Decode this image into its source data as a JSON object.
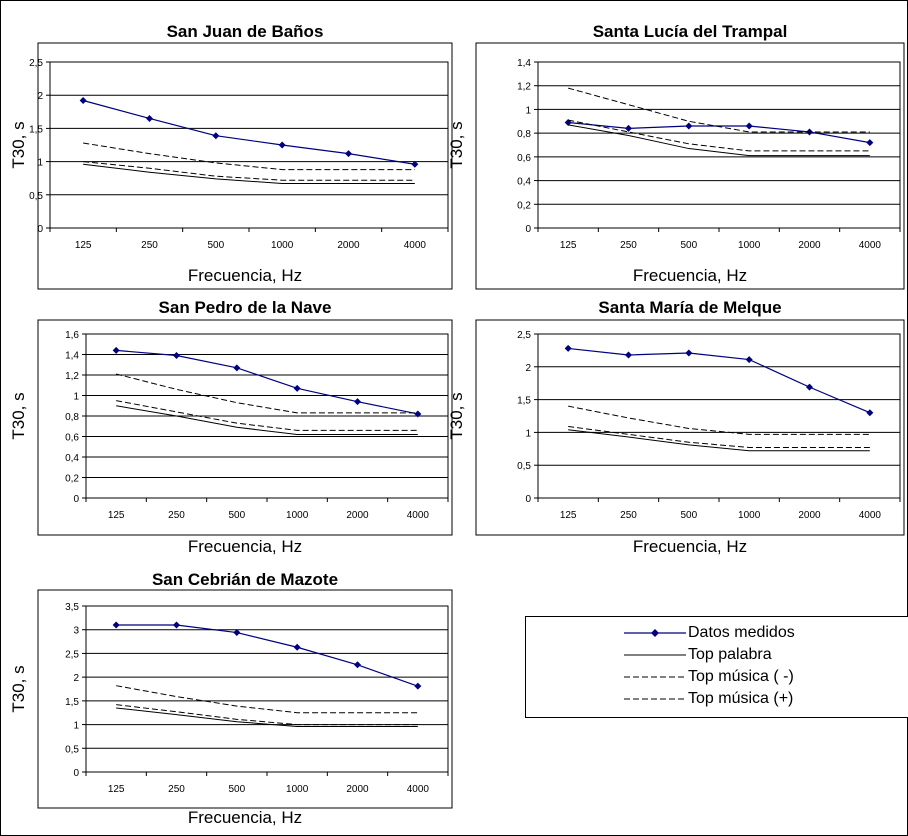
{
  "chart_data": [
    {
      "type": "line",
      "title": "San Juan de Baños",
      "xlabel": "Frecuencia, Hz",
      "ylabel": "T30, s",
      "categories": [
        "125",
        "250",
        "500",
        "1000",
        "2000",
        "4000"
      ],
      "yticks": [
        "0",
        "0,5",
        "1",
        "1,5",
        "2",
        "2,5"
      ],
      "ylim": [
        0,
        2.5
      ],
      "series": [
        {
          "name": "Datos medidos",
          "values": [
            1.92,
            1.65,
            1.39,
            1.25,
            1.12,
            0.96
          ]
        },
        {
          "name": "Top palabra",
          "values": [
            0.96,
            0.84,
            0.74,
            0.67,
            0.67,
            0.67
          ]
        },
        {
          "name": "Top música ( -)",
          "values": [
            1.0,
            0.9,
            0.78,
            0.72,
            0.72,
            0.72
          ]
        },
        {
          "name": "Top música (+)",
          "values": [
            1.28,
            1.12,
            0.98,
            0.88,
            0.88,
            0.88
          ]
        }
      ]
    },
    {
      "type": "line",
      "title": "Santa Lucía del Trampal",
      "xlabel": "Frecuencia, Hz",
      "ylabel": "T30, s",
      "categories": [
        "125",
        "250",
        "500",
        "1000",
        "2000",
        "4000"
      ],
      "yticks": [
        "0",
        "0,2",
        "0,4",
        "0,6",
        "0,8",
        "1",
        "1,2",
        "1,4"
      ],
      "ylim": [
        0,
        1.4
      ],
      "series": [
        {
          "name": "Datos medidos",
          "values": [
            0.89,
            0.84,
            0.86,
            0.86,
            0.81,
            0.72
          ]
        },
        {
          "name": "Top palabra",
          "values": [
            0.87,
            0.78,
            0.67,
            0.61,
            0.61,
            0.61
          ]
        },
        {
          "name": "Top música ( -)",
          "values": [
            0.91,
            0.81,
            0.71,
            0.65,
            0.65,
            0.65
          ]
        },
        {
          "name": "Top música (+)",
          "values": [
            1.18,
            1.04,
            0.9,
            0.81,
            0.81,
            0.81
          ]
        }
      ]
    },
    {
      "type": "line",
      "title": "San Pedro de la Nave",
      "xlabel": "Frecuencia, Hz",
      "ylabel": "T30, s",
      "categories": [
        "125",
        "250",
        "500",
        "1000",
        "2000",
        "4000"
      ],
      "yticks": [
        "0",
        "0,2",
        "0,4",
        "0,6",
        "0,8",
        "1",
        "1,2",
        "1,4",
        "1,6"
      ],
      "ylim": [
        0,
        1.6
      ],
      "series": [
        {
          "name": "Datos medidos",
          "values": [
            1.44,
            1.39,
            1.27,
            1.07,
            0.94,
            0.82
          ]
        },
        {
          "name": "Top palabra",
          "values": [
            0.9,
            0.8,
            0.69,
            0.62,
            0.62,
            0.62
          ]
        },
        {
          "name": "Top música ( -)",
          "values": [
            0.95,
            0.84,
            0.73,
            0.66,
            0.66,
            0.66
          ]
        },
        {
          "name": "Top música (+)",
          "values": [
            1.21,
            1.06,
            0.93,
            0.83,
            0.83,
            0.83
          ]
        }
      ]
    },
    {
      "type": "line",
      "title": "Santa María de Melque",
      "xlabel": "Frecuencia, Hz",
      "ylabel": "T30, s",
      "categories": [
        "125",
        "250",
        "500",
        "1000",
        "2000",
        "4000"
      ],
      "yticks": [
        "0",
        "0,5",
        "1",
        "1,5",
        "2",
        "2,5"
      ],
      "ylim": [
        0,
        2.5
      ],
      "series": [
        {
          "name": "Datos medidos",
          "values": [
            2.28,
            2.18,
            2.21,
            2.11,
            1.69,
            1.3
          ]
        },
        {
          "name": "Top palabra",
          "values": [
            1.04,
            0.93,
            0.81,
            0.72,
            0.72,
            0.72
          ]
        },
        {
          "name": "Top música ( -)",
          "values": [
            1.09,
            0.97,
            0.85,
            0.77,
            0.77,
            0.77
          ]
        },
        {
          "name": "Top música (+)",
          "values": [
            1.4,
            1.22,
            1.06,
            0.97,
            0.97,
            0.97
          ]
        }
      ]
    },
    {
      "type": "line",
      "title": "San Cebrián de Mazote",
      "xlabel": "Frecuencia, Hz",
      "ylabel": "T30, s",
      "categories": [
        "125",
        "250",
        "500",
        "1000",
        "2000",
        "4000"
      ],
      "yticks": [
        "0",
        "0,5",
        "1",
        "1,5",
        "2",
        "2,5",
        "3",
        "3,5"
      ],
      "ylim": [
        0,
        3.5
      ],
      "series": [
        {
          "name": "Datos medidos",
          "values": [
            3.1,
            3.1,
            2.94,
            2.63,
            2.26,
            1.81
          ]
        },
        {
          "name": "Top palabra",
          "values": [
            1.35,
            1.21,
            1.06,
            0.96,
            0.96,
            0.96
          ]
        },
        {
          "name": "Top música ( -)",
          "values": [
            1.42,
            1.27,
            1.11,
            1.0,
            1.0,
            1.0
          ]
        },
        {
          "name": "Top música (+)",
          "values": [
            1.82,
            1.59,
            1.39,
            1.25,
            1.25,
            1.25
          ]
        }
      ]
    }
  ],
  "legend": {
    "entries": [
      {
        "name": "Datos medidos",
        "style": "marker-line",
        "color": "#000080"
      },
      {
        "name": "Top palabra",
        "style": "solid",
        "color": "#000000"
      },
      {
        "name": "Top música ( -)",
        "style": "dashed",
        "color": "#000000"
      },
      {
        "name": "Top música (+)",
        "style": "dashed",
        "color": "#000000"
      }
    ]
  },
  "colors": {
    "measured": "#000080",
    "reference": "#000000"
  }
}
